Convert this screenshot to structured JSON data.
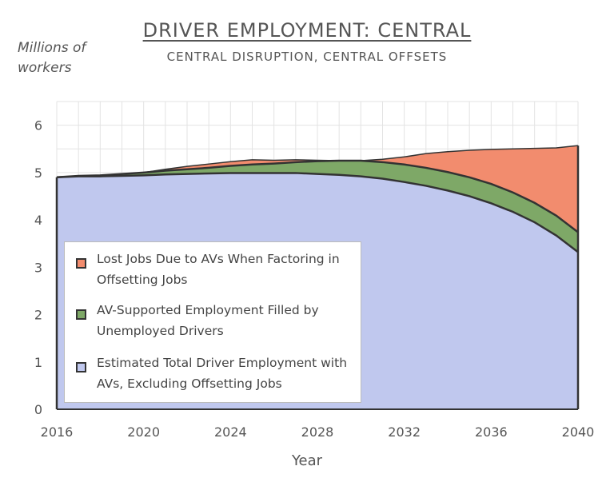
{
  "chart_data": {
    "type": "area",
    "title": "DRIVER EMPLOYMENT: CENTRAL",
    "subtitle": "CENTRAL DISRUPTION, CENTRAL OFFSETS",
    "ylabel": "Millions of workers",
    "xlabel": "Year",
    "xlim": [
      2016,
      2040
    ],
    "ylim": [
      0,
      6.5
    ],
    "x_ticks": [
      "2016",
      "2020",
      "2024",
      "2028",
      "2032",
      "2036",
      "2040"
    ],
    "y_ticks": [
      "0",
      "1",
      "2",
      "3",
      "4",
      "5",
      "6"
    ],
    "grid": true,
    "legend_position": "bottom-left",
    "stacked": true,
    "x": [
      2016,
      2017,
      2018,
      2019,
      2020,
      2021,
      2022,
      2023,
      2024,
      2025,
      2026,
      2027,
      2028,
      2029,
      2030,
      2031,
      2032,
      2033,
      2034,
      2035,
      2036,
      2037,
      2038,
      2039,
      2040
    ],
    "series": [
      {
        "name": "Estimated Total Driver Employment with AVs, Excluding Offsetting Jobs",
        "color": "#c0c8ee",
        "values": [
          4.9,
          4.92,
          4.92,
          4.93,
          4.94,
          4.96,
          4.97,
          4.98,
          4.99,
          4.99,
          4.99,
          4.99,
          4.97,
          4.95,
          4.92,
          4.87,
          4.8,
          4.72,
          4.62,
          4.5,
          4.35,
          4.17,
          3.95,
          3.67,
          3.32
        ]
      },
      {
        "name": "AV-Supported Employment Filled by Unemployed Drivers",
        "color": "#7ea867",
        "values": [
          0.0,
          0.01,
          0.02,
          0.04,
          0.06,
          0.08,
          0.1,
          0.12,
          0.15,
          0.18,
          0.2,
          0.23,
          0.27,
          0.3,
          0.33,
          0.35,
          0.37,
          0.38,
          0.39,
          0.4,
          0.41,
          0.41,
          0.41,
          0.42,
          0.42
        ]
      },
      {
        "name": "Lost Jobs Due to AVs When Factoring in Offsetting Jobs",
        "color": "#f28c6e",
        "values": [
          0.0,
          0.0,
          0.0,
          0.0,
          0.0,
          0.03,
          0.06,
          0.08,
          0.09,
          0.1,
          0.07,
          0.05,
          0.02,
          0.0,
          0.0,
          0.06,
          0.16,
          0.3,
          0.43,
          0.57,
          0.73,
          0.92,
          1.15,
          1.43,
          1.83
        ]
      }
    ]
  }
}
